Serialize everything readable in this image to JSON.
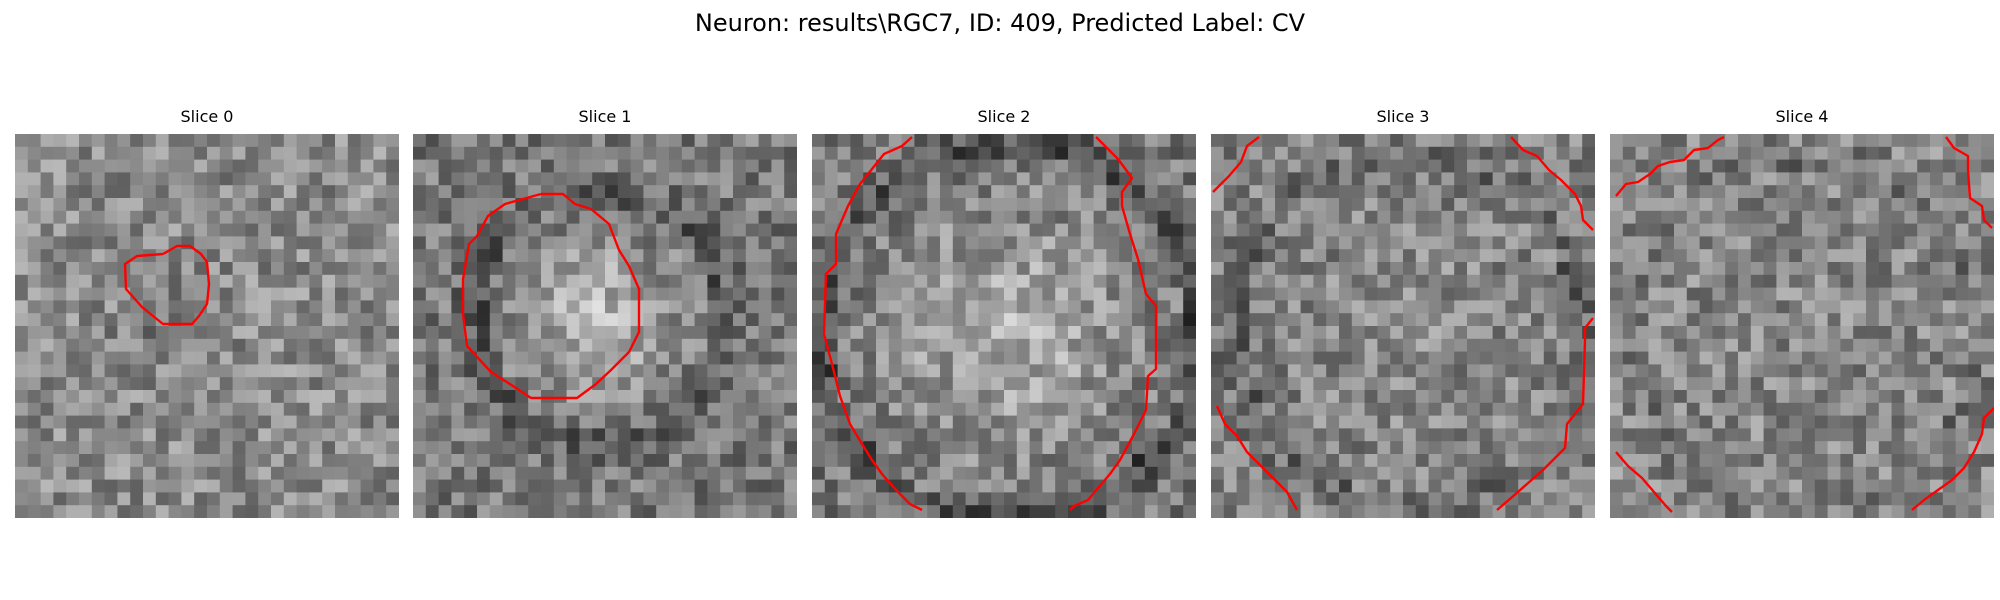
{
  "figure": {
    "title": "Neuron: results\\RGC7, ID: 409, Predicted Label: CV",
    "panels": [
      {
        "title": "Slice 0"
      },
      {
        "title": "Slice 1"
      },
      {
        "title": "Slice 2"
      },
      {
        "title": "Slice 3"
      },
      {
        "title": "Slice 4"
      }
    ],
    "colors": {
      "contour": "#ff0000",
      "background": "#ffffff"
    },
    "colormap": "gray"
  }
}
